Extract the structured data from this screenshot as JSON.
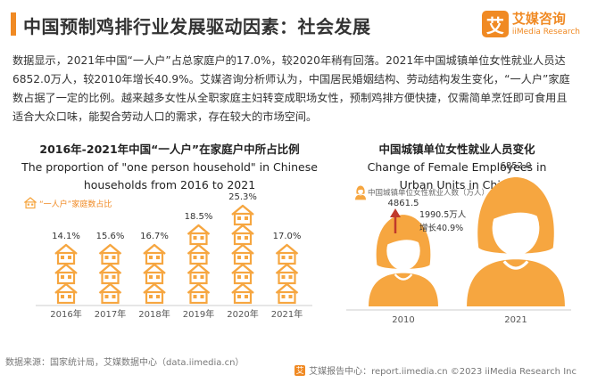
{
  "header": {
    "title": "中国预制鸡排行业发展驱动因素：社会发展",
    "logo_mark": "艾",
    "logo_cn": "艾媒咨询",
    "logo_en": "iiMedia Research"
  },
  "description": "数据显示，2021年中国“一人户”占总家庭户的17.0%，较2020年稍有回落。2021年中国城镇单位女性就业人员达6852.0万人，较2010年增长40.9%。艾媒咨询分析师认为，中国居民婚姻结构、劳动结构发生变化，“一人户”家庭数占据了一定的比例。越来越多女性从全职家庭主妇转变成职场女性，预制鸡排方便快捷，仅需简单烹饪即可食用且适合大众口味，能契合劳动人口的需求，存在较大的市场空间。",
  "colors": {
    "accent": "#f08a24",
    "icon_fill": "#f6a640",
    "arrow": "#c0392b"
  },
  "chart_data": [
    {
      "type": "bar",
      "title_cn": "2016年-2021年中国“一人户”在家庭户中所占比例",
      "title_en": "The proportion of \"one person household\" in Chinese households from 2016 to 2021",
      "legend": "“一人户”家庭数占比",
      "categories": [
        "2016年",
        "2017年",
        "2018年",
        "2019年",
        "2020年",
        "2021年"
      ],
      "values": [
        14.1,
        15.6,
        16.7,
        18.5,
        25.3,
        17.0
      ],
      "value_labels": [
        "14.1%",
        "15.6%",
        "16.7%",
        "18.5%",
        "25.3%",
        "17.0%"
      ],
      "unit": "%",
      "icon": "house-icon"
    },
    {
      "type": "bar",
      "title_cn": "中国城镇单位女性就业人员变化",
      "title_en": "Change of Female Employees in Urban Units in China",
      "legend": "中国城镇单位女性就业人数（万人）",
      "categories": [
        "2010",
        "2021"
      ],
      "values": [
        4861.5,
        6852.0
      ],
      "value_labels": [
        "4861.5",
        "6852.0"
      ],
      "annotation": [
        "1990.5万人",
        "增长40.9%"
      ],
      "icon": "woman-icon"
    }
  ],
  "footer": {
    "source": "数据来源：国家统计局，艾媒数据中心（data.iimedia.cn）",
    "mark": "艾",
    "right": "艾媒报告中心：report.iimedia.cn   ©2023  iiMedia Research  Inc"
  }
}
